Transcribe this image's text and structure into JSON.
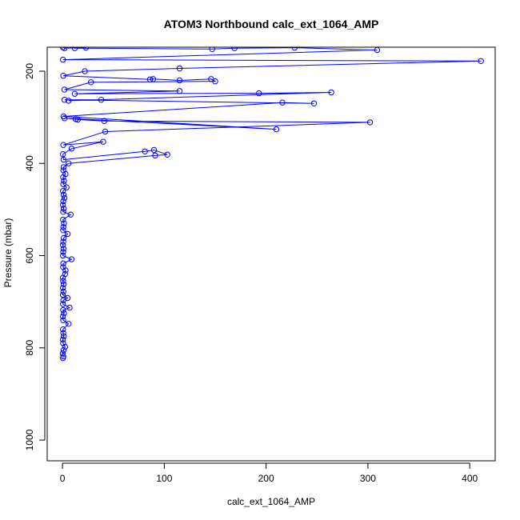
{
  "chart_data": {
    "type": "scatter",
    "title": "ATOM3 Northbound calc_ext_1064_AMP",
    "xlabel": "calc_ext_1064_AMP",
    "ylabel": "Pressure (mbar)",
    "xlim": [
      -15,
      425
    ],
    "ylim": [
      1045,
      148
    ],
    "y_reversed": true,
    "grid": false,
    "xticks": [
      0,
      100,
      200,
      300,
      400
    ],
    "yticks": [
      200,
      400,
      600,
      800,
      1000
    ],
    "series_color": "#0000ff",
    "series": [
      {
        "points": [
          [
            0.5,
            822
          ],
          [
            0.8,
            818
          ],
          [
            0.3,
            812
          ],
          [
            1.0,
            805
          ],
          [
            2.5,
            798
          ],
          [
            0.6,
            790
          ],
          [
            0.4,
            782
          ],
          [
            1.2,
            775
          ],
          [
            0.8,
            768
          ],
          [
            0.5,
            760
          ],
          [
            6.0,
            748
          ],
          [
            0.7,
            740
          ],
          [
            0.4,
            732
          ],
          [
            1.5,
            725
          ],
          [
            0.6,
            718
          ],
          [
            7.0,
            713
          ],
          [
            0.5,
            705
          ],
          [
            0.8,
            697
          ],
          [
            5.0,
            692
          ],
          [
            0.4,
            685
          ],
          [
            0.9,
            678
          ],
          [
            0.5,
            670
          ],
          [
            1.1,
            662
          ],
          [
            0.6,
            655
          ],
          [
            0.4,
            648
          ],
          [
            2.5,
            640
          ],
          [
            3.0,
            632
          ],
          [
            0.6,
            625
          ],
          [
            0.8,
            617
          ],
          [
            9.0,
            608
          ],
          [
            0.5,
            600
          ],
          [
            0.7,
            592
          ],
          [
            1.0,
            585
          ],
          [
            0.5,
            577
          ],
          [
            0.8,
            570
          ],
          [
            1.2,
            562
          ],
          [
            5.0,
            553
          ],
          [
            0.6,
            545
          ],
          [
            0.9,
            538
          ],
          [
            1.5,
            530
          ],
          [
            0.5,
            522
          ],
          [
            8.0,
            511
          ],
          [
            0.7,
            505
          ],
          [
            1.2,
            498
          ],
          [
            0.5,
            490
          ],
          [
            0.8,
            482
          ],
          [
            2.0,
            475
          ],
          [
            1.0,
            468
          ],
          [
            0.5,
            460
          ],
          [
            4.0,
            452
          ],
          [
            0.8,
            445
          ],
          [
            1.5,
            438
          ],
          [
            0.6,
            430
          ],
          [
            3.0,
            423
          ],
          [
            0.9,
            415
          ],
          [
            1.2,
            408
          ],
          [
            6.0,
            400
          ],
          [
            91.0,
            383
          ],
          [
            103.0,
            381
          ],
          [
            90.0,
            371
          ],
          [
            81.0,
            374
          ],
          [
            1.0,
            392
          ],
          [
            0.5,
            380
          ],
          [
            9.0,
            368
          ],
          [
            40.0,
            353
          ],
          [
            0.8,
            360
          ],
          [
            42.0,
            331
          ],
          [
            302.0,
            311
          ],
          [
            41.0,
            308
          ],
          [
            15.0,
            305
          ],
          [
            13.0,
            304
          ],
          [
            2.0,
            302
          ],
          [
            210.0,
            326
          ],
          [
            1.0,
            298
          ],
          [
            216.0,
            268
          ],
          [
            247.0,
            270
          ],
          [
            2.0,
            262
          ],
          [
            38.0,
            262
          ],
          [
            6.0,
            264
          ],
          [
            264.0,
            246
          ],
          [
            193.0,
            248
          ],
          [
            12.0,
            249
          ],
          [
            115.0,
            243
          ],
          [
            2.0,
            240
          ],
          [
            28.0,
            224
          ],
          [
            150.0,
            222
          ],
          [
            146.0,
            217
          ],
          [
            115.0,
            220
          ],
          [
            89.0,
            217
          ],
          [
            86.0,
            218
          ],
          [
            0.8,
            210
          ],
          [
            22.0,
            200
          ],
          [
            115.0,
            194
          ],
          [
            411.0,
            178
          ],
          [
            0.5,
            175
          ],
          [
            309.0,
            154
          ],
          [
            228.0,
            149
          ],
          [
            169.0,
            150
          ],
          [
            147.0,
            152
          ],
          [
            12.0,
            150
          ],
          [
            23.0,
            149
          ],
          [
            2.0,
            150
          ],
          [
            0.5,
            148
          ]
        ]
      }
    ]
  }
}
